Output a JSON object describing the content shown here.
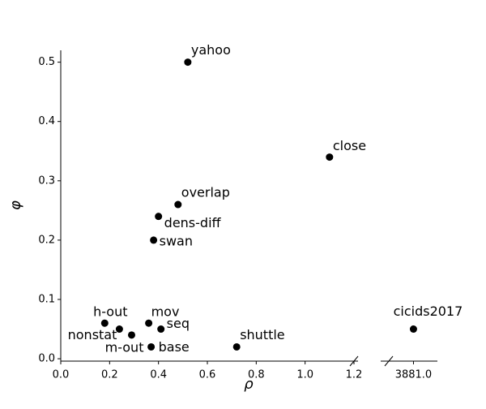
{
  "chart_data": {
    "type": "scatter",
    "xlabel": "ρ",
    "ylabel": "φ",
    "color": "#000000",
    "labels": [
      "yahoo",
      "close",
      "overlap",
      "dens-diff",
      "swan",
      "h-out",
      "nonstat",
      "m-out",
      "mov",
      "seq",
      "base",
      "shuttle",
      "cicids2017"
    ],
    "x": [
      0.52,
      1.1,
      0.48,
      0.4,
      0.38,
      0.18,
      0.24,
      0.29,
      0.36,
      0.41,
      0.37,
      0.72,
      3881.0
    ],
    "values": [
      0.5,
      0.34,
      0.26,
      0.24,
      0.2,
      0.06,
      0.05,
      0.04,
      0.06,
      0.05,
      0.02,
      0.02,
      0.05
    ],
    "xlim": [
      0,
      1.2
    ],
    "x2lim": [
      3880.88,
      3881.1
    ],
    "ylim": [
      -0.004,
      0.52
    ],
    "xticks": [
      {
        "value": 0,
        "label": "0.0"
      },
      0.2,
      0.4,
      0.6,
      0.8,
      {
        "value": 1,
        "label": "1.0"
      },
      1.2
    ],
    "x2ticks": [
      {
        "value": 3881,
        "label": "3881.0"
      }
    ],
    "yticks": [
      {
        "value": 0,
        "label": "0.0"
      },
      0.1,
      0.2,
      0.3,
      0.4,
      0.5
    ]
  }
}
